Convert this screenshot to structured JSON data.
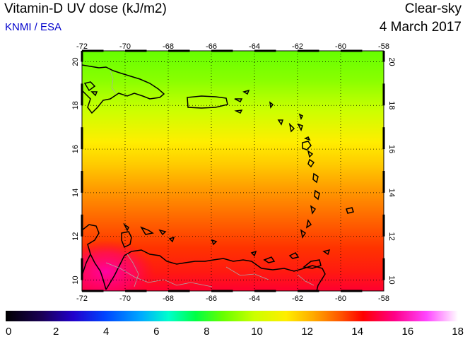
{
  "header": {
    "title": "Vitamin-D UV dose (kJ/m2)",
    "credit": "KNMI / ESA",
    "mode": "Clear-sky",
    "date": "4 March 2017"
  },
  "map": {
    "lon_range": [
      -72,
      -58
    ],
    "lat_range": [
      9.5,
      20.5
    ],
    "lon_ticks": [
      "-72",
      "-70",
      "-68",
      "-66",
      "-64",
      "-62",
      "-60",
      "-58"
    ],
    "lat_ticks": [
      "20",
      "18",
      "16",
      "14",
      "12",
      "10"
    ],
    "grid": true
  },
  "colorbar": {
    "min": 0,
    "max": 18,
    "tick_labels": [
      "0",
      "2",
      "4",
      "6",
      "8",
      "10",
      "12",
      "14",
      "16",
      "18"
    ]
  }
}
